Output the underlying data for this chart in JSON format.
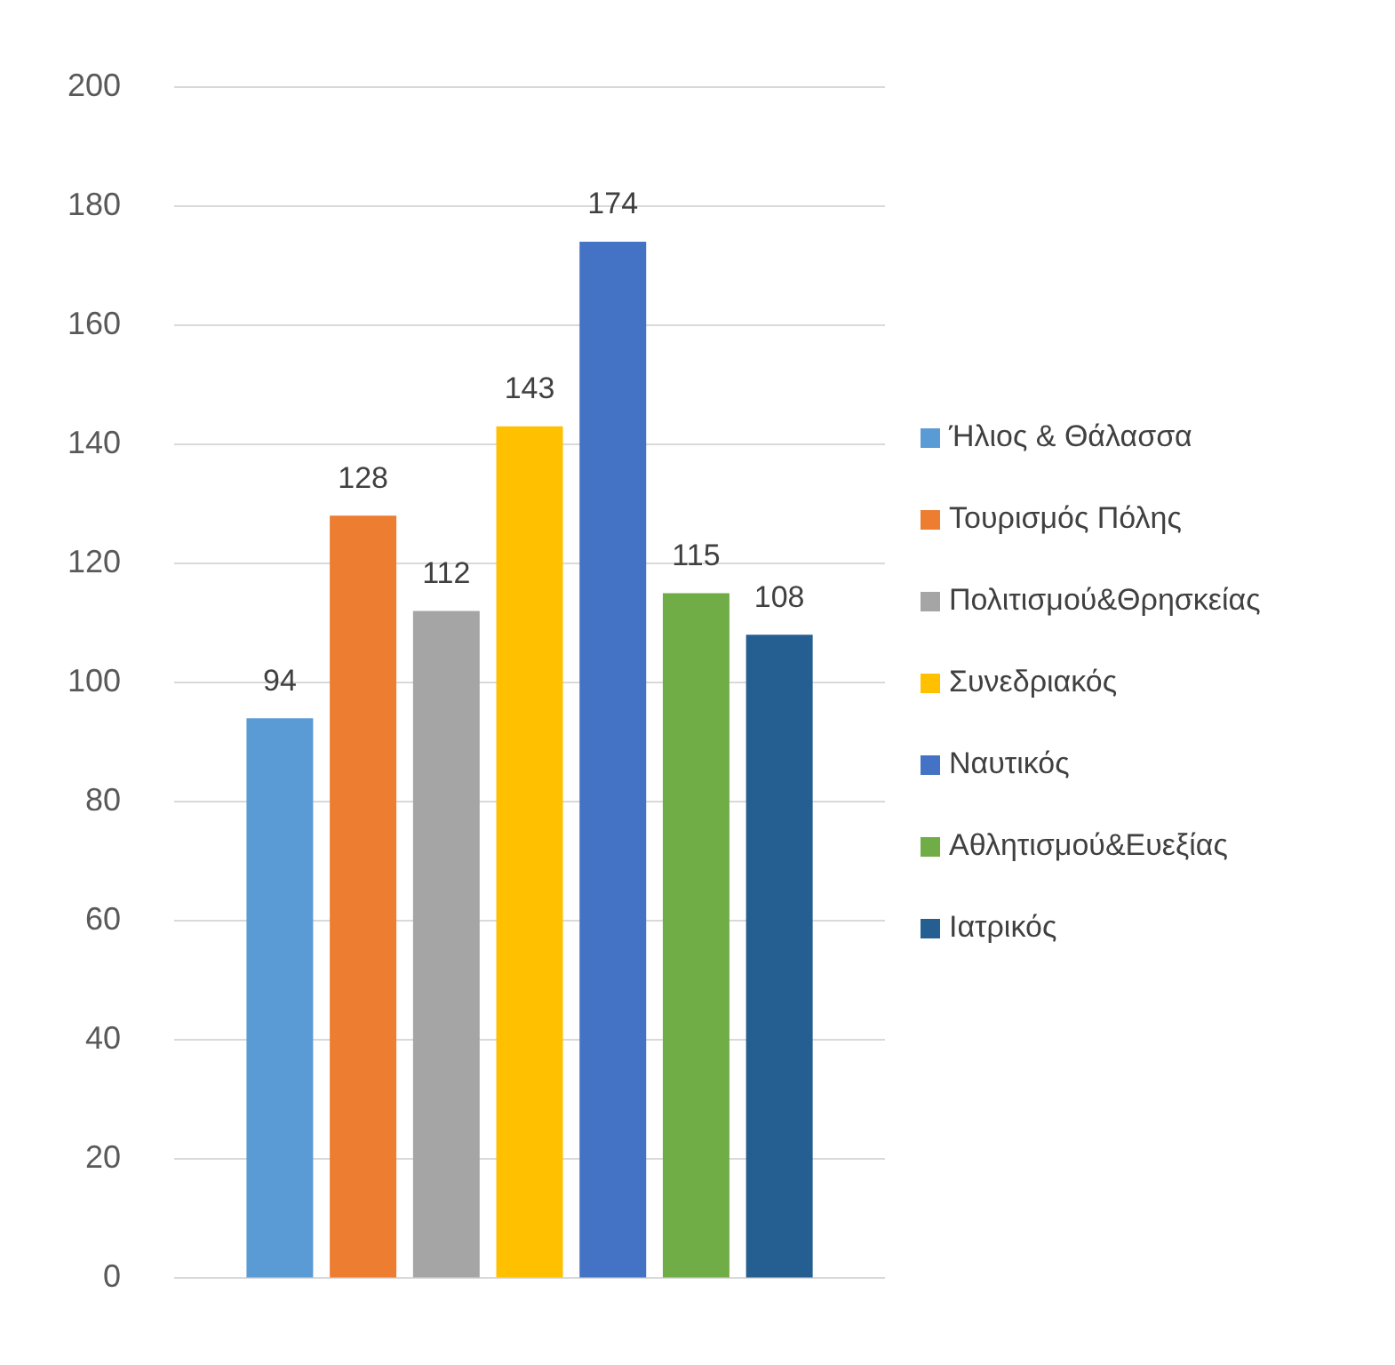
{
  "chart_data": {
    "type": "bar",
    "categories": [
      null
    ],
    "series": [
      {
        "name": "Ήλιος & Θάλασσα",
        "color": "#5b9bd5",
        "values": [
          94
        ]
      },
      {
        "name": "Τουρισμός Πόλης",
        "color": "#ed7d31",
        "values": [
          128
        ]
      },
      {
        "name": "Πολιτισμού&Θρησκείας",
        "color": "#a5a5a5",
        "values": [
          112
        ]
      },
      {
        "name": "Συνεδριακός",
        "color": "#ffc000",
        "values": [
          143
        ]
      },
      {
        "name": "Ναυτικός",
        "color": "#4472c4",
        "values": [
          174
        ]
      },
      {
        "name": "Αθλητισμού&Ευεξίας",
        "color": "#70ad47",
        "values": [
          115
        ]
      },
      {
        "name": "Ιατρικός",
        "color": "#255e91",
        "values": [
          108
        ]
      }
    ],
    "ylim": [
      0,
      200
    ],
    "yticks": [
      0,
      20,
      40,
      60,
      80,
      100,
      120,
      140,
      160,
      180,
      200
    ],
    "grid": "y",
    "legend": "right",
    "data_labels": true
  }
}
